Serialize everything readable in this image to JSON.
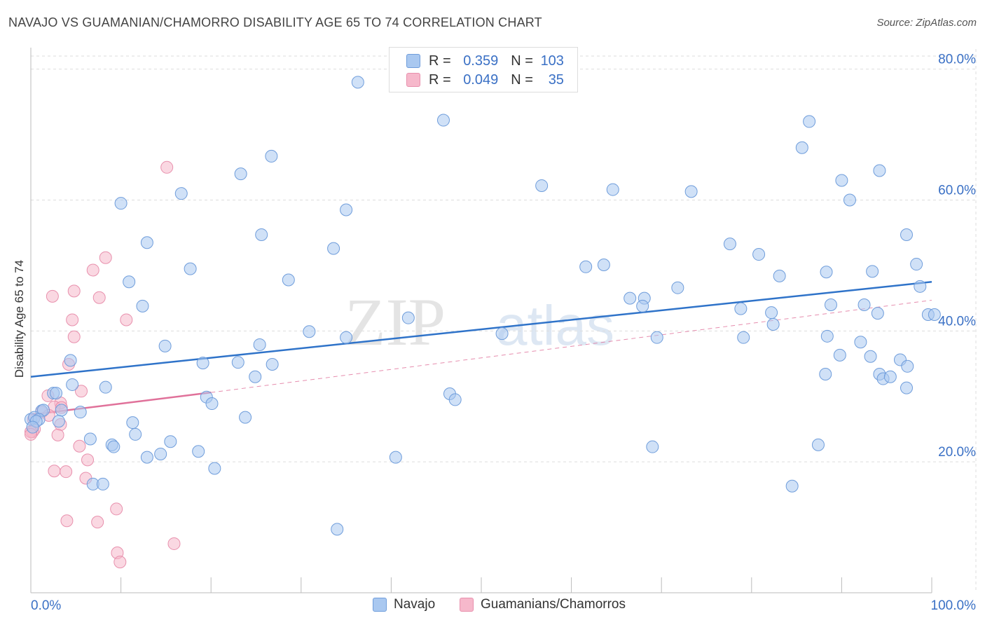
{
  "title": "NAVAJO VS GUAMANIAN/CHAMORRO DISABILITY AGE 65 TO 74 CORRELATION CHART",
  "source": "Source: ZipAtlas.com",
  "watermark": {
    "zip": "ZIP",
    "atlas": "atlas"
  },
  "legend": {
    "row1": {
      "r_label": "R =",
      "r_value": "0.359",
      "n_label": "N =",
      "n_value": "103"
    },
    "row2": {
      "r_label": "R =",
      "r_value": "0.049",
      "n_label": "N =",
      "n_value": "35"
    }
  },
  "bottom_legend": {
    "navajo": "Navajo",
    "guam": "Guamanians/Chamorros"
  },
  "colors": {
    "navajo_fill": "#a9c8f0",
    "navajo_stroke": "#6f9ddb",
    "navajo_line": "#2f73c9",
    "guam_fill": "#f6b8cb",
    "guam_stroke": "#e890ad",
    "guam_line": "#e0719a",
    "axis_text": "#3a70c5",
    "grid": "#dddddd"
  },
  "chart_data": {
    "type": "scatter",
    "title": "NAVAJO VS GUAMANIAN/CHAMORRO DISABILITY AGE 65 TO 74 CORRELATION CHART",
    "xlabel": "",
    "ylabel": "Disability Age 65 to 74",
    "xlim": [
      0,
      100
    ],
    "ylim": [
      0,
      82
    ],
    "x_tick_labels": [
      "0.0%",
      "100.0%"
    ],
    "y_ticks": [
      20,
      40,
      60,
      80
    ],
    "y_tick_labels": [
      "20.0%",
      "40.0%",
      "60.0%",
      "80.0%"
    ],
    "series": [
      {
        "name": "Navajo",
        "r": 0.359,
        "n": 103,
        "trend": {
          "x": [
            0,
            100
          ],
          "y": [
            33.0,
            47.5
          ]
        },
        "points": [
          [
            36.3,
            78.0
          ],
          [
            45.8,
            72.2
          ],
          [
            86.4,
            72.0
          ],
          [
            85.6,
            68.0
          ],
          [
            26.7,
            66.7
          ],
          [
            23.3,
            64.0
          ],
          [
            94.2,
            64.5
          ],
          [
            90.0,
            63.0
          ],
          [
            56.7,
            62.2
          ],
          [
            64.6,
            61.6
          ],
          [
            73.3,
            61.3
          ],
          [
            16.7,
            61.0
          ],
          [
            90.9,
            60.0
          ],
          [
            10.0,
            59.5
          ],
          [
            35.0,
            58.5
          ],
          [
            25.6,
            54.7
          ],
          [
            97.2,
            54.7
          ],
          [
            12.9,
            53.5
          ],
          [
            77.6,
            53.3
          ],
          [
            33.6,
            52.6
          ],
          [
            80.8,
            51.7
          ],
          [
            98.3,
            50.2
          ],
          [
            61.6,
            49.8
          ],
          [
            63.6,
            50.1
          ],
          [
            17.7,
            49.5
          ],
          [
            88.3,
            49.0
          ],
          [
            93.4,
            49.1
          ],
          [
            83.1,
            48.4
          ],
          [
            28.6,
            47.8
          ],
          [
            10.9,
            47.5
          ],
          [
            98.7,
            46.8
          ],
          [
            71.8,
            46.6
          ],
          [
            66.5,
            45.0
          ],
          [
            68.1,
            45.0
          ],
          [
            12.4,
            43.8
          ],
          [
            67.9,
            43.8
          ],
          [
            88.8,
            44.0
          ],
          [
            92.5,
            44.0
          ],
          [
            78.8,
            43.4
          ],
          [
            41.9,
            42.0
          ],
          [
            82.2,
            42.8
          ],
          [
            94.0,
            42.7
          ],
          [
            99.6,
            42.5
          ],
          [
            100.3,
            42.5
          ],
          [
            82.4,
            41.0
          ],
          [
            30.9,
            39.9
          ],
          [
            52.3,
            39.6
          ],
          [
            35.0,
            39.0
          ],
          [
            69.5,
            39.0
          ],
          [
            79.1,
            39.0
          ],
          [
            88.4,
            39.2
          ],
          [
            92.1,
            38.3
          ],
          [
            14.9,
            37.7
          ],
          [
            25.4,
            37.9
          ],
          [
            4.4,
            35.5
          ],
          [
            89.8,
            36.3
          ],
          [
            93.2,
            36.1
          ],
          [
            96.5,
            35.6
          ],
          [
            19.1,
            35.1
          ],
          [
            23.0,
            35.2
          ],
          [
            26.8,
            34.9
          ],
          [
            97.3,
            34.6
          ],
          [
            88.2,
            33.4
          ],
          [
            94.2,
            33.4
          ],
          [
            24.9,
            33.0
          ],
          [
            94.6,
            32.7
          ],
          [
            95.4,
            33.0
          ],
          [
            4.6,
            31.8
          ],
          [
            8.3,
            31.4
          ],
          [
            2.5,
            30.5
          ],
          [
            2.8,
            30.5
          ],
          [
            46.5,
            30.4
          ],
          [
            19.5,
            29.9
          ],
          [
            47.1,
            29.5
          ],
          [
            20.1,
            28.9
          ],
          [
            97.2,
            31.3
          ],
          [
            0.0,
            26.5
          ],
          [
            1.2,
            27.8
          ],
          [
            1.4,
            27.9
          ],
          [
            3.4,
            27.9
          ],
          [
            5.5,
            27.6
          ],
          [
            0.4,
            26.8
          ],
          [
            0.9,
            26.5
          ],
          [
            0.6,
            26.2
          ],
          [
            3.1,
            26.2
          ],
          [
            23.8,
            26.8
          ],
          [
            0.2,
            25.3
          ],
          [
            11.3,
            26.0
          ],
          [
            11.6,
            24.2
          ],
          [
            6.6,
            23.5
          ],
          [
            15.5,
            23.1
          ],
          [
            9.0,
            22.6
          ],
          [
            9.2,
            22.3
          ],
          [
            87.4,
            22.6
          ],
          [
            69.0,
            22.3
          ],
          [
            14.4,
            21.2
          ],
          [
            18.6,
            21.6
          ],
          [
            12.9,
            20.7
          ],
          [
            40.5,
            20.7
          ],
          [
            20.4,
            19.0
          ],
          [
            6.9,
            16.6
          ],
          [
            8.0,
            16.6
          ],
          [
            84.5,
            16.3
          ],
          [
            34.0,
            9.7
          ]
        ]
      },
      {
        "name": "Guamanians/Chamorros",
        "r": 0.049,
        "n": 35,
        "trend": {
          "x": [
            0,
            20
          ],
          "y": [
            27.2,
            30.6
          ],
          "dashed_x": [
            20,
            100
          ],
          "dashed_y": [
            30.6,
            44.7
          ]
        },
        "points": [
          [
            15.1,
            65.0
          ],
          [
            8.3,
            51.2
          ],
          [
            6.9,
            49.3
          ],
          [
            4.8,
            46.1
          ],
          [
            2.4,
            45.3
          ],
          [
            7.6,
            45.1
          ],
          [
            4.6,
            41.7
          ],
          [
            10.6,
            41.7
          ],
          [
            4.8,
            39.1
          ],
          [
            4.2,
            34.9
          ],
          [
            5.6,
            30.8
          ],
          [
            1.9,
            30.1
          ],
          [
            3.3,
            29.0
          ],
          [
            2.6,
            28.4
          ],
          [
            3.4,
            28.3
          ],
          [
            1.2,
            27.6
          ],
          [
            2.0,
            27.1
          ],
          [
            0.3,
            26.5
          ],
          [
            3.3,
            25.7
          ],
          [
            0.4,
            25.0
          ],
          [
            0.2,
            24.6
          ],
          [
            0.0,
            24.6
          ],
          [
            0.0,
            24.2
          ],
          [
            3.0,
            24.1
          ],
          [
            5.4,
            22.4
          ],
          [
            6.3,
            20.3
          ],
          [
            2.6,
            18.6
          ],
          [
            3.9,
            18.5
          ],
          [
            6.1,
            17.5
          ],
          [
            9.5,
            12.8
          ],
          [
            4.0,
            11.0
          ],
          [
            7.4,
            10.8
          ],
          [
            15.9,
            7.5
          ],
          [
            9.6,
            6.1
          ],
          [
            9.9,
            4.7
          ]
        ]
      }
    ]
  }
}
